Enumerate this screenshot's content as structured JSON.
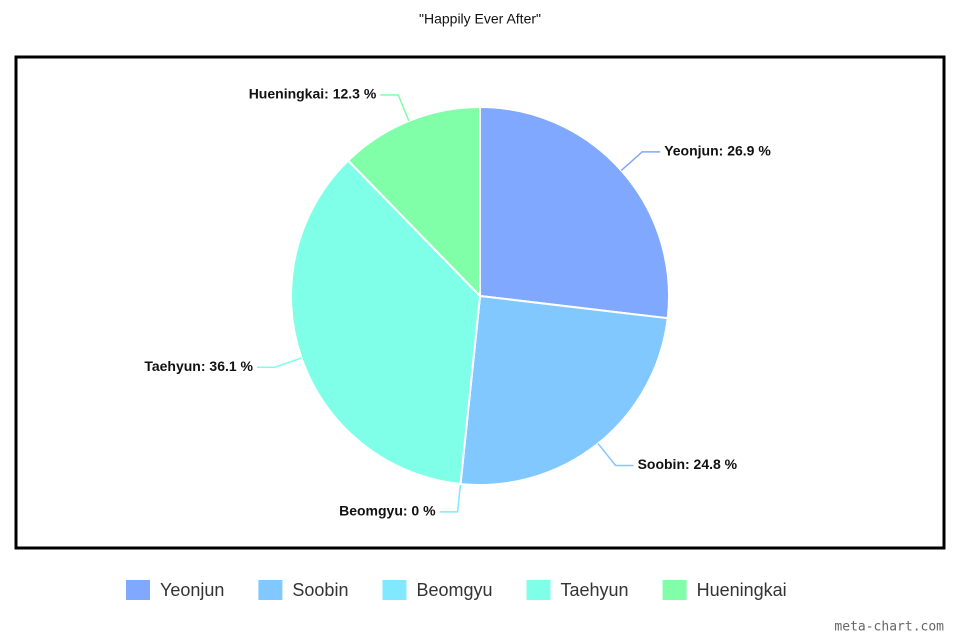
{
  "chart_data": {
    "type": "pie",
    "title": "\"Happily Ever After\"",
    "categories": [
      "Yeonjun",
      "Soobin",
      "Beomgyu",
      "Taehyun",
      "Hueningkai"
    ],
    "values": [
      26.9,
      24.8,
      0,
      36.1,
      12.3
    ],
    "value_labels": [
      "Yeonjun: 26.9 %",
      "Soobin: 24.8 %",
      "Beomgyu: 0 %",
      "Taehyun: 36.1 %",
      "Hueningkai: 12.3 %"
    ],
    "colors": [
      "#80a8ff",
      "#80c8ff",
      "#80e8ff",
      "#80ffe8",
      "#80ffa8"
    ],
    "legend": "bottom",
    "watermark": "meta-chart.com"
  }
}
